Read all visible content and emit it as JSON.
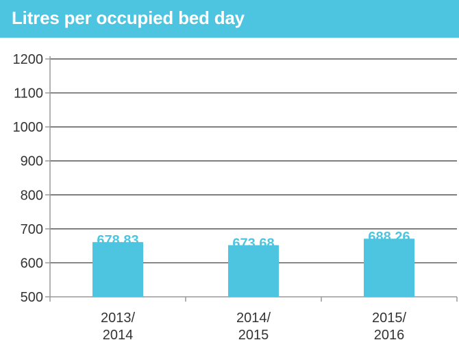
{
  "title": "Litres per occupied bed day",
  "colors": {
    "accent": "#4dc4e0",
    "axis": "#999999",
    "grid": "#333333",
    "text": "#333333"
  },
  "chart_data": {
    "type": "bar",
    "title": "Litres per occupied bed day",
    "categories": [
      [
        "2013/",
        "2014"
      ],
      [
        "2014/",
        "2015"
      ],
      [
        "2015/",
        "2016"
      ]
    ],
    "values": [
      678.83,
      673.68,
      688.26
    ],
    "data_labels": [
      "678.83",
      "673.68",
      "688.26"
    ],
    "bar_heights": [
      661,
      652,
      671
    ],
    "ylim": [
      500,
      1200
    ],
    "yticks": [
      500,
      600,
      700,
      800,
      900,
      1000,
      1100,
      1200
    ],
    "grid": true,
    "legend": "none"
  }
}
